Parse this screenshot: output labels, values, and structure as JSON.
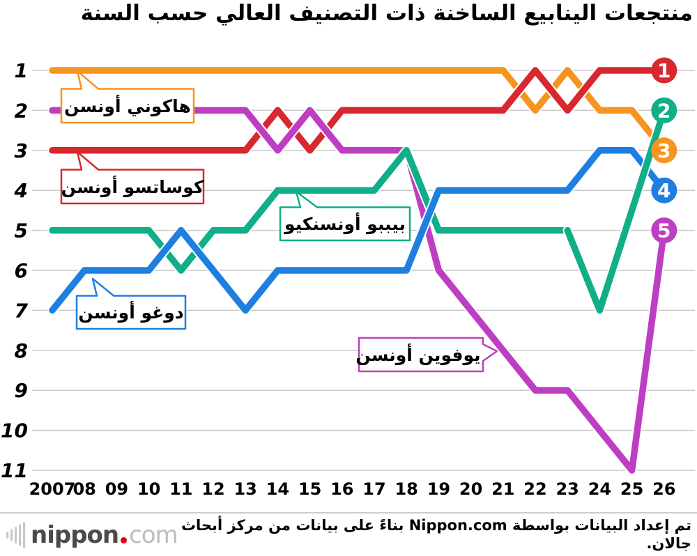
{
  "title": "منتجعات الينابيع الساخنة ذات التصنيف العالي حسب السنة",
  "chart_data": {
    "type": "line",
    "variant": "bump-ranking",
    "x_labels": [
      "2007",
      "08",
      "09",
      "10",
      "11",
      "12",
      "13",
      "14",
      "15",
      "16",
      "17",
      "18",
      "19",
      "20",
      "21",
      "22",
      "23",
      "24",
      "25",
      "26"
    ],
    "y_ticks": [
      1,
      2,
      3,
      4,
      5,
      6,
      7,
      8,
      9,
      10,
      11
    ],
    "y_range": [
      1,
      11
    ],
    "y_inverted": true,
    "grid": "horizontal",
    "series": [
      {
        "name": "هاكوني أونسن",
        "color": "#F5941F",
        "values": [
          1,
          1,
          1,
          1,
          1,
          1,
          1,
          1,
          1,
          1,
          1,
          1,
          1,
          1,
          1,
          2,
          1,
          2,
          2,
          3
        ]
      },
      {
        "name": "كوساتسو أونسن",
        "color": "#D7282F",
        "values": [
          3,
          3,
          3,
          3,
          3,
          3,
          3,
          2,
          3,
          2,
          2,
          2,
          2,
          2,
          2,
          1,
          2,
          1,
          1,
          1
        ]
      },
      {
        "name": "يوفوين أونسن",
        "color": "#BE3EC3",
        "values": [
          2,
          2,
          2,
          2,
          2,
          2,
          2,
          3,
          2,
          3,
          3,
          3,
          6,
          7,
          8,
          9,
          9,
          10,
          11,
          5
        ]
      },
      {
        "name": "بيببو أونسنكيو",
        "color": "#10AE89",
        "values": [
          5,
          5,
          5,
          5,
          6,
          5,
          5,
          4,
          4,
          4,
          4,
          3,
          5,
          5,
          5,
          5,
          5,
          7,
          null,
          2
        ]
      },
      {
        "name": "دوغو أونسن",
        "color": "#1E7FE0",
        "values": [
          7,
          6,
          6,
          6,
          5,
          6,
          7,
          6,
          6,
          6,
          6,
          6,
          4,
          4,
          4,
          4,
          4,
          3,
          3,
          4
        ]
      }
    ],
    "overlay": {
      "series": 3,
      "from": 16
    },
    "end_markers": [
      {
        "label": "1",
        "rank": 1,
        "color": "#D7282F"
      },
      {
        "label": "2",
        "rank": 2,
        "color": "#10AE89"
      },
      {
        "label": "3",
        "rank": 3,
        "color": "#F5941F"
      },
      {
        "label": "4",
        "rank": 4,
        "color": "#1E7FE0"
      },
      {
        "label": "5",
        "rank": 5,
        "color": "#BE3EC3"
      }
    ]
  },
  "callouts": [
    {
      "text": "هاكوني أونسن"
    },
    {
      "text": "كوساتسو أونسن"
    },
    {
      "text": "بيببو أونسنكيو"
    },
    {
      "text": "دوغو أونسن"
    },
    {
      "text": "يوفوين أونسن"
    }
  ],
  "footer": {
    "logo_nippon": "nippon",
    "logo_com": "com",
    "credit": "تم إعداد البيانات بواسطة Nippon.com بناءً على بيانات من مركز أبحاث جالان."
  }
}
